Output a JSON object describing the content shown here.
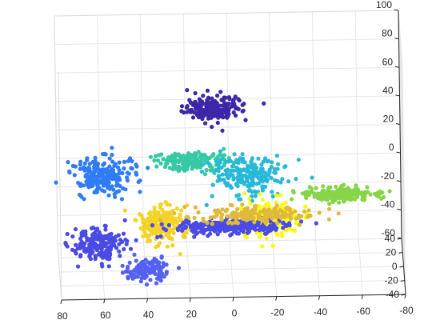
{
  "chart_data": {
    "type": "scatter",
    "projection": "3d",
    "title": "",
    "xlabel": "",
    "ylabel": "",
    "zlabel": "",
    "xlim": [
      -80,
      80
    ],
    "ylim": [
      -40,
      40
    ],
    "zlim": [
      -60,
      100
    ],
    "x_ticks": [
      "80",
      "60",
      "40",
      "20",
      "0",
      "-20",
      "-40",
      "-60",
      "-80"
    ],
    "y_ticks": [
      "40",
      "20",
      "0",
      "-20",
      "-40"
    ],
    "z_ticks": [
      "100",
      "80",
      "60",
      "40",
      "20",
      "0",
      "-20",
      "-40",
      "-60"
    ],
    "grid": true,
    "legend": "none",
    "colors": [
      "#3e26a8",
      "#2f7cf6",
      "#28b9d8",
      "#36c9a4",
      "#86d549",
      "#f5d326",
      "#f9fb0e",
      "#dfb93b",
      "#4a4ae6",
      "#5561f0"
    ],
    "clusters": [
      {
        "color": "#3e26a8",
        "x": 8,
        "y": -10,
        "z": 58,
        "spread": [
          7,
          4,
          4
        ],
        "n": 180
      },
      {
        "color": "#2f7cf6",
        "x": 58,
        "y": 10,
        "z": 2,
        "spread": [
          7,
          5,
          6
        ],
        "n": 220
      },
      {
        "color": "#36c9a4",
        "x": 18,
        "y": 8,
        "z": 12,
        "spread": [
          8,
          4,
          3
        ],
        "n": 180
      },
      {
        "color": "#28b9d8",
        "x": -8,
        "y": 4,
        "z": 4,
        "spread": [
          8,
          5,
          6
        ],
        "n": 220
      },
      {
        "color": "#86d549",
        "x": -50,
        "y": -2,
        "z": -8,
        "spread": [
          8,
          3,
          2
        ],
        "n": 200
      },
      {
        "color": "#f5d326",
        "x": 32,
        "y": 0,
        "z": -28,
        "spread": [
          6,
          5,
          6
        ],
        "n": 200
      },
      {
        "color": "#f9fb0e",
        "x": -18,
        "y": 0,
        "z": -24,
        "spread": [
          7,
          4,
          6
        ],
        "n": 170
      },
      {
        "color": "#4a4ae6",
        "x": 62,
        "y": 0,
        "z": -42,
        "spread": [
          6,
          4,
          6
        ],
        "n": 200
      },
      {
        "color": "#5561f0",
        "x": 40,
        "y": -6,
        "z": -56,
        "spread": [
          5,
          4,
          4
        ],
        "n": 120
      },
      {
        "color": "#4a4ae6",
        "x": 0,
        "y": 20,
        "z": -40,
        "spread": [
          14,
          3,
          2
        ],
        "n": 260
      },
      {
        "color": "#dfb93b",
        "x": -12,
        "y": 16,
        "z": -30,
        "spread": [
          14,
          4,
          2
        ],
        "n": 180
      }
    ]
  }
}
